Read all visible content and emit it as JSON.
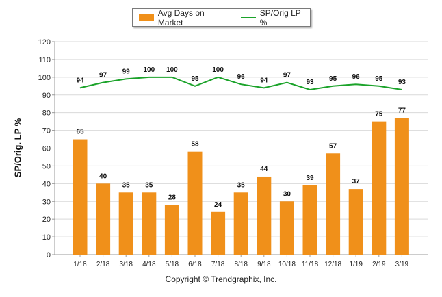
{
  "legend": {
    "bar_label": "Avg Days on Market",
    "line_label": "SP/Orig LP %"
  },
  "colors": {
    "bar": "#F0901A",
    "line": "#1BA32A",
    "grid": "#d9d9d9",
    "axis": "#999999"
  },
  "footer": {
    "copyright": "Copyright © Trendgraphix, Inc."
  },
  "chart_data": {
    "type": "bar",
    "title": "",
    "xlabel": "",
    "ylabel": "SP/Orig. LP %",
    "ylim": [
      0,
      120
    ],
    "yticks": [
      0,
      10,
      20,
      30,
      40,
      50,
      60,
      70,
      80,
      90,
      100,
      110,
      120
    ],
    "grid": true,
    "legend_position": "top",
    "categories": [
      "1/18",
      "2/18",
      "3/18",
      "4/18",
      "5/18",
      "6/18",
      "7/18",
      "8/18",
      "9/18",
      "10/18",
      "11/18",
      "12/18",
      "1/19",
      "2/19",
      "3/19"
    ],
    "series": [
      {
        "name": "Avg Days on Market",
        "type": "bar",
        "values": [
          65,
          40,
          35,
          35,
          28,
          58,
          24,
          35,
          44,
          30,
          39,
          57,
          37,
          75,
          77
        ]
      },
      {
        "name": "SP/Orig LP %",
        "type": "line",
        "values": [
          94,
          97,
          99,
          100,
          100,
          95,
          100,
          96,
          94,
          97,
          93,
          95,
          96,
          95,
          93
        ]
      }
    ]
  }
}
